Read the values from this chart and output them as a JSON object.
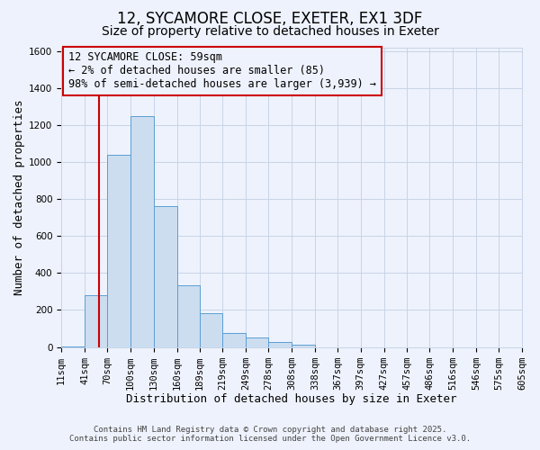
{
  "title": "12, SYCAMORE CLOSE, EXETER, EX1 3DF",
  "subtitle": "Size of property relative to detached houses in Exeter",
  "xlabel": "Distribution of detached houses by size in Exeter",
  "ylabel": "Number of detached properties",
  "bar_edges": [
    11,
    41,
    70,
    100,
    130,
    160,
    189,
    219,
    249,
    278,
    308,
    338,
    367,
    397,
    427,
    457,
    486,
    516,
    546,
    575,
    605
  ],
  "bar_heights": [
    5,
    280,
    1040,
    1250,
    760,
    335,
    185,
    75,
    50,
    28,
    15,
    0,
    0,
    0,
    0,
    0,
    0,
    0,
    0,
    0
  ],
  "bar_color": "#ccddf0",
  "bar_edge_color": "#5a9fd4",
  "property_line_x": 59,
  "property_line_color": "#cc0000",
  "ylim": [
    0,
    1620
  ],
  "yticks": [
    0,
    200,
    400,
    600,
    800,
    1000,
    1200,
    1400,
    1600
  ],
  "xtick_labels": [
    "11sqm",
    "41sqm",
    "70sqm",
    "100sqm",
    "130sqm",
    "160sqm",
    "189sqm",
    "219sqm",
    "249sqm",
    "278sqm",
    "308sqm",
    "338sqm",
    "367sqm",
    "397sqm",
    "427sqm",
    "457sqm",
    "486sqm",
    "516sqm",
    "546sqm",
    "575sqm",
    "605sqm"
  ],
  "annotation_box_text": "12 SYCAMORE CLOSE: 59sqm\n← 2% of detached houses are smaller (85)\n98% of semi-detached houses are larger (3,939) →",
  "box_edge_color": "#cc0000",
  "grid_color": "#c8d4e8",
  "background_color": "#eef2fc",
  "footer_line1": "Contains HM Land Registry data © Crown copyright and database right 2025.",
  "footer_line2": "Contains public sector information licensed under the Open Government Licence v3.0.",
  "title_fontsize": 12,
  "subtitle_fontsize": 10,
  "axis_label_fontsize": 9,
  "tick_fontsize": 7.5,
  "annotation_fontsize": 8.5,
  "footer_fontsize": 6.5
}
